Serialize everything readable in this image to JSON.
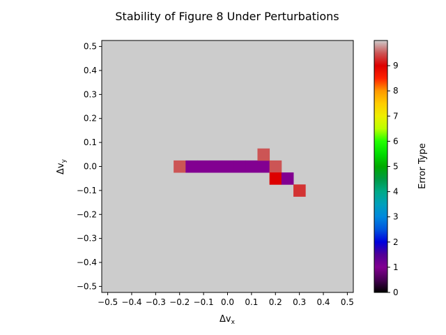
{
  "chart_data": {
    "type": "heatmap",
    "title": "Stability of Figure 8 Under Perturbations",
    "xlabel": "Δv",
    "xlabel_sub": "x",
    "ylabel": "Δv",
    "ylabel_sub": "y",
    "xlim": [
      -0.525,
      0.525
    ],
    "ylim": [
      -0.525,
      0.525
    ],
    "cell_size": 0.05,
    "background_value": 10,
    "x_ticks": [
      -0.5,
      -0.4,
      -0.3,
      -0.2,
      -0.1,
      0.0,
      0.1,
      0.2,
      0.3,
      0.4,
      0.5
    ],
    "y_ticks": [
      -0.5,
      -0.4,
      -0.3,
      -0.2,
      -0.1,
      0.0,
      0.1,
      0.2,
      0.3,
      0.4,
      0.5
    ],
    "x_tick_labels": [
      "−0.5",
      "−0.4",
      "−0.3",
      "−0.2",
      "−0.1",
      "0.0",
      "0.1",
      "0.2",
      "0.3",
      "0.4",
      "0.5"
    ],
    "y_tick_labels": [
      "−0.5",
      "−0.4",
      "−0.3",
      "−0.2",
      "−0.1",
      "0.0",
      "0.1",
      "0.2",
      "0.3",
      "0.4",
      "0.5"
    ],
    "cells": [
      {
        "x": -0.2,
        "y": 0.0,
        "value": 9.5
      },
      {
        "x": -0.15,
        "y": 0.0,
        "value": 1
      },
      {
        "x": -0.1,
        "y": 0.0,
        "value": 1
      },
      {
        "x": -0.05,
        "y": 0.0,
        "value": 1
      },
      {
        "x": 0.0,
        "y": 0.0,
        "value": 1
      },
      {
        "x": 0.05,
        "y": 0.0,
        "value": 1
      },
      {
        "x": 0.1,
        "y": 0.0,
        "value": 1
      },
      {
        "x": 0.15,
        "y": 0.0,
        "value": 1
      },
      {
        "x": 0.15,
        "y": 0.05,
        "value": 9.5
      },
      {
        "x": 0.2,
        "y": 0.0,
        "value": 9.5
      },
      {
        "x": 0.2,
        "y": -0.05,
        "value": 9
      },
      {
        "x": 0.25,
        "y": -0.05,
        "value": 1
      },
      {
        "x": 0.3,
        "y": -0.1,
        "value": 9.3
      }
    ],
    "colorbar": {
      "label": "Error Type",
      "range": [
        0,
        10
      ],
      "ticks": [
        0,
        1,
        2,
        3,
        4,
        5,
        6,
        7,
        8,
        9
      ],
      "tick_labels": [
        "0",
        "1",
        "2",
        "3",
        "4",
        "5",
        "6",
        "7",
        "8",
        "9"
      ],
      "colormap": "nipy_spectral"
    },
    "grid": false
  }
}
